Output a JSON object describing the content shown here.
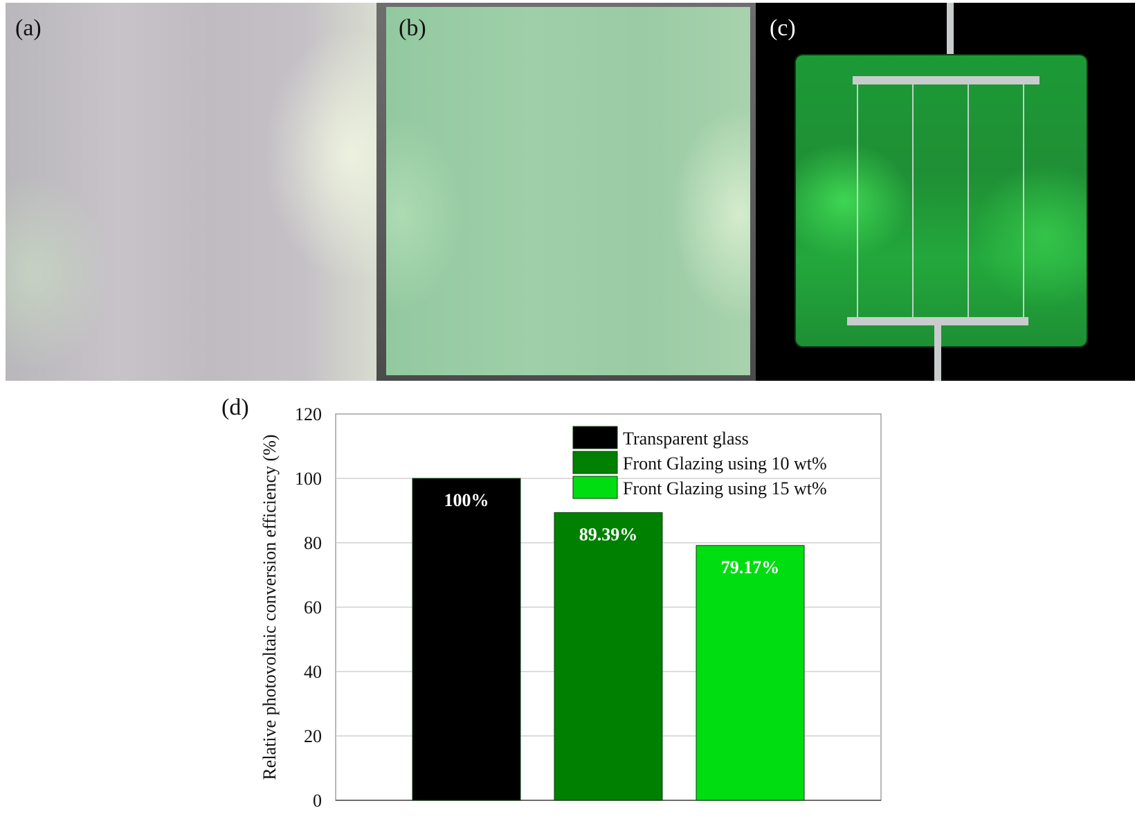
{
  "panels": {
    "a": {
      "label": "(a)"
    },
    "b": {
      "label": "(b)"
    },
    "c": {
      "label": "(c)"
    },
    "d": {
      "label": "(d)"
    }
  },
  "colors": {
    "transparent_glass": "#000000",
    "glazing_10": "#008000",
    "glazing_15": "#00dd10",
    "grid": "#c8c8c8",
    "axis": "#888888"
  },
  "chart_data": {
    "type": "bar",
    "ylabel": "Relative photovoltaic conversion efficiency (%)",
    "ylim": [
      0,
      120
    ],
    "yticks": [
      0,
      20,
      40,
      60,
      80,
      100,
      120
    ],
    "grid": true,
    "legend_position": "top-right",
    "series": [
      {
        "name": "Transparent glass",
        "value": 100,
        "data_label": "100%",
        "color": "#000000"
      },
      {
        "name": "Front Glazing using 10 wt%",
        "value": 89.39,
        "data_label": "89.39%",
        "color": "#008000"
      },
      {
        "name": "Front Glazing using 15 wt%",
        "value": 79.17,
        "data_label": "79.17%",
        "color": "#00dd10"
      }
    ]
  }
}
